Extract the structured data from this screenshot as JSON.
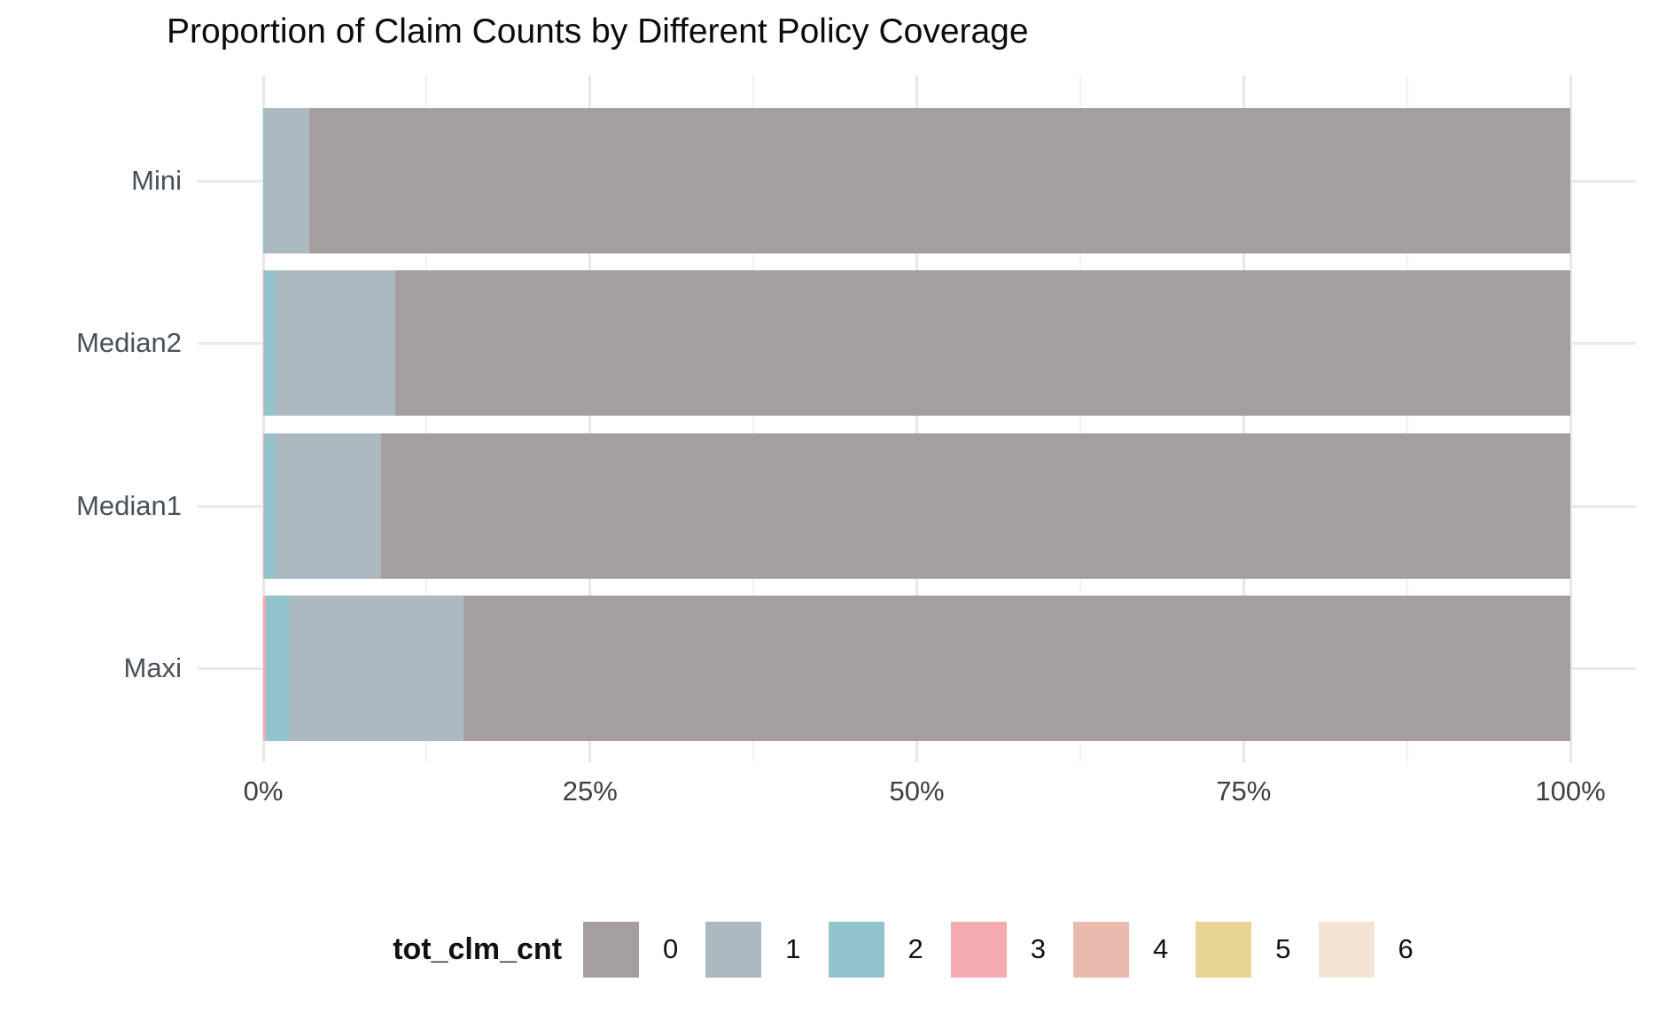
{
  "chart_data": {
    "type": "bar",
    "subtype": "horizontal-stacked-proportion",
    "title": "Proportion of Claim Counts by Different Policy Coverage",
    "categories": [
      "Mini",
      "Median2",
      "Median1",
      "Maxi"
    ],
    "x_tick_labels": [
      "0%",
      "25%",
      "50%",
      "75%",
      "100%"
    ],
    "xlim": [
      0,
      100
    ],
    "grid": "vertical majors at 25% steps with minors at 12.5% steps; horizontal line at each category center",
    "legend_position": "bottom-center",
    "legend_title": "tot_clm_cnt",
    "legend_entries": [
      {
        "label": "0",
        "color": "#A49E9E"
      },
      {
        "label": "1",
        "color": "#ADB9C1"
      },
      {
        "label": "2",
        "color": "#93C4CC"
      },
      {
        "label": "3",
        "color": "#F4ABB1"
      },
      {
        "label": "4",
        "color": "#EBBAAF"
      },
      {
        "label": "5",
        "color": "#E7D595"
      },
      {
        "label": "6",
        "color": "#F3E4D4"
      }
    ],
    "series_note": "values are percent of each bar, listed in left-to-right stacking order; categories 4, 5, 6 have no visible width",
    "series": [
      {
        "name": "3",
        "values": [
          0,
          0.1,
          0.1,
          0.17
        ]
      },
      {
        "name": "2",
        "values": [
          0.15,
          0.8,
          0.8,
          1.78
        ]
      },
      {
        "name": "1",
        "values": [
          3.4,
          9.2,
          8.1,
          13.35
        ]
      },
      {
        "name": "0",
        "values": [
          96.45,
          89.9,
          91.0,
          84.7
        ]
      }
    ]
  }
}
